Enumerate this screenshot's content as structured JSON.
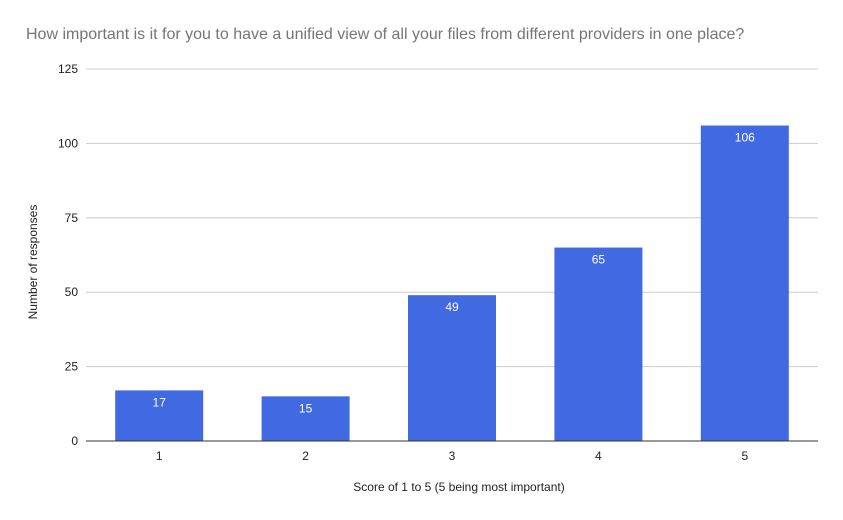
{
  "chart_data": {
    "type": "bar",
    "title": "How important is it for you to have a unified view of all your files from different providers in one place?",
    "xlabel": "Score of 1 to 5 (5 being most important)",
    "ylabel": "Number of responses",
    "categories": [
      "1",
      "2",
      "3",
      "4",
      "5"
    ],
    "values": [
      17,
      15,
      49,
      65,
      106
    ],
    "ylim": [
      0,
      125
    ],
    "yticks": [
      0,
      25,
      50,
      75,
      100,
      125
    ],
    "grid": true,
    "legend": "none",
    "bar_color": "#4169e1",
    "grid_color": "#cccccc"
  }
}
